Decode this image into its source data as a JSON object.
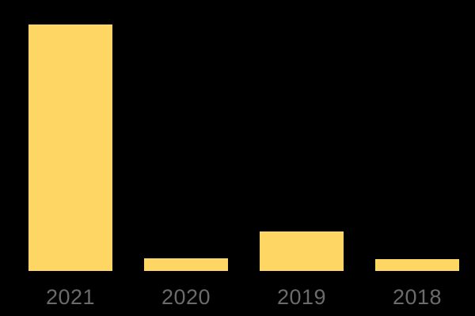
{
  "page": {
    "background_color": "#000000"
  },
  "chart_data": {
    "type": "bar",
    "title": "",
    "xlabel": "",
    "ylabel": "",
    "categories": [
      "2021",
      "2020",
      "2019",
      "2018"
    ],
    "values": [
      312,
      16,
      50,
      15
    ],
    "ylim": [
      0,
      312
    ],
    "grid": false,
    "legend": false,
    "bar_color": "#FDD663",
    "label_color": "#6B6B6B",
    "background_color": "#000000"
  }
}
